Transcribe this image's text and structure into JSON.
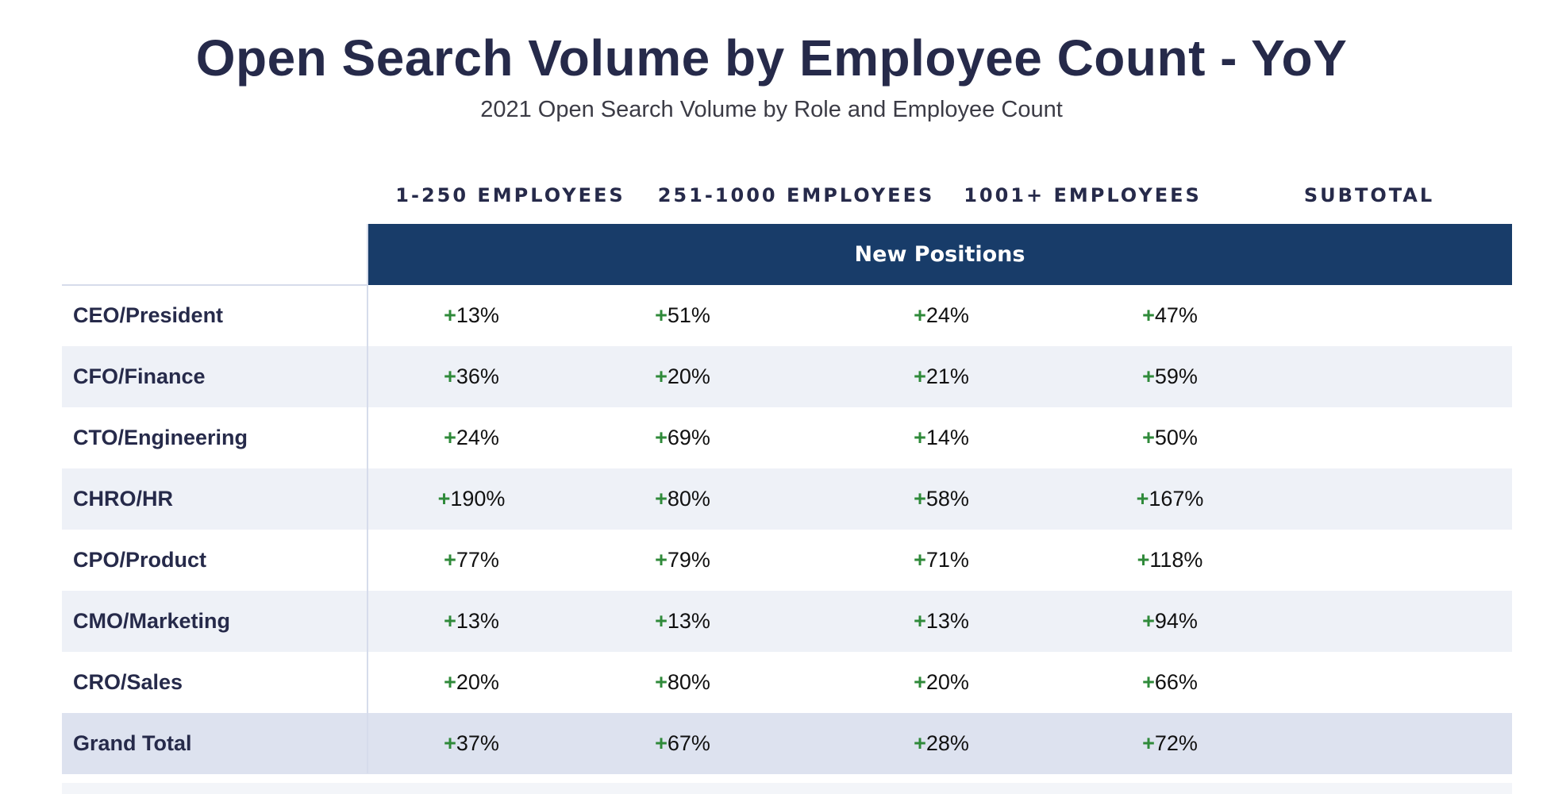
{
  "chart_data": {
    "type": "table",
    "title": "Open Search Volume by Employee Count - YoY",
    "subtitle": "2021 Open Search Volume by Role and Employee Count",
    "columns": [
      "1-250 EMPLOYEES",
      "251-1000 EMPLOYEES",
      "1001+ EMPLOYEES",
      "SUBTOTAL"
    ],
    "group_header": "New Positions",
    "rows": [
      {
        "label": "CEO/President",
        "values": [
          "13%",
          "51%",
          "24%",
          "47%"
        ]
      },
      {
        "label": "CFO/Finance",
        "values": [
          "36%",
          "20%",
          "21%",
          "59%"
        ]
      },
      {
        "label": "CTO/Engineering",
        "values": [
          "24%",
          "69%",
          "14%",
          "50%"
        ]
      },
      {
        "label": "CHRO/HR",
        "values": [
          "190%",
          "80%",
          "58%",
          "167%"
        ]
      },
      {
        "label": "CPO/Product",
        "values": [
          "77%",
          "79%",
          "71%",
          "118%"
        ]
      },
      {
        "label": "CMO/Marketing",
        "values": [
          "13%",
          "13%",
          "13%",
          "94%"
        ]
      },
      {
        "label": "CRO/Sales",
        "values": [
          "20%",
          "80%",
          "20%",
          "66%"
        ]
      }
    ],
    "total_row": {
      "label": "Grand Total",
      "values": [
        "37%",
        "67%",
        "28%",
        "72%"
      ]
    },
    "sign": "+",
    "colors": {
      "header_band": "#183c69",
      "plus_sign": "#2f8a3a",
      "text": "#262a4a",
      "row_alt": "#eef1f7",
      "total_row": "#dde2ef"
    }
  }
}
